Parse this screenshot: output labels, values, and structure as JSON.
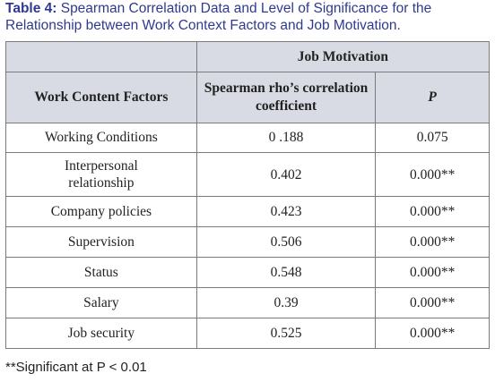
{
  "caption": {
    "label": "Table 4:",
    "text": " Spearman Correlation Data and Level of Significance for the Relationship between Work Context Factors and Job Motivation."
  },
  "table": {
    "group_header": "Job Motivation",
    "headers": [
      "Work Content Factors",
      "Spearman rho’s correlation coefficient",
      "P"
    ],
    "rows": [
      {
        "factor": "Working Conditions",
        "rho": "0 .188",
        "p": "0.075"
      },
      {
        "factor": "Interpersonal relationship",
        "rho": "0.402",
        "p": "0.000**"
      },
      {
        "factor": "Company policies",
        "rho": "0.423",
        "p": "0.000**"
      },
      {
        "factor": "Supervision",
        "rho": "0.506",
        "p": "0.000**"
      },
      {
        "factor": "Status",
        "rho": "0.548",
        "p": "0.000**"
      },
      {
        "factor": "Salary",
        "rho": "0.39",
        "p": "0.000**"
      },
      {
        "factor": "Job security",
        "rho": "0.525",
        "p": "0.000**"
      }
    ]
  },
  "footnote": "**Significant at P < 0.01"
}
